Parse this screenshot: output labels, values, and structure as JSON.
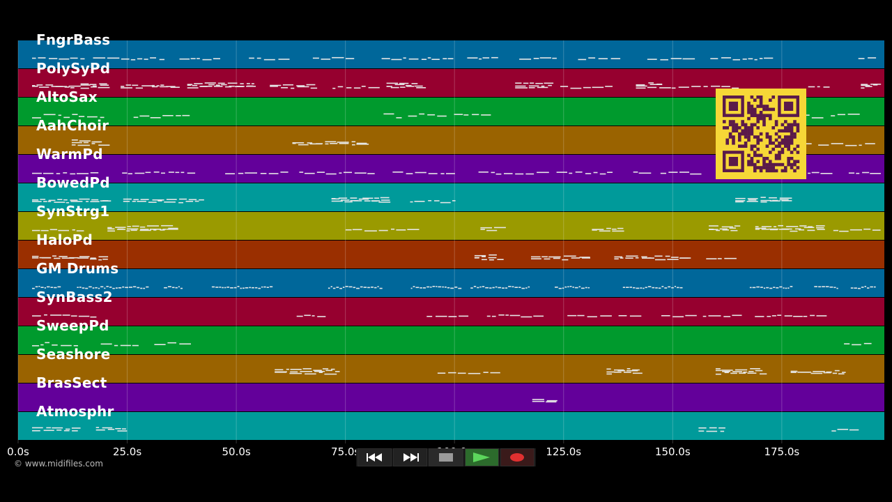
{
  "tracks": [
    {
      "name": "FngrBass",
      "color": "#00679a",
      "density": 0.9,
      "pattern": "bass"
    },
    {
      "name": "PolySyPd",
      "color": "#96002f",
      "density": 0.7,
      "pattern": "pad"
    },
    {
      "name": "AltoSax",
      "color": "#009a2d",
      "density": 0.6,
      "pattern": "lead"
    },
    {
      "name": "AahChoir",
      "color": "#9a6300",
      "density": 0.5,
      "pattern": "pad"
    },
    {
      "name": "WarmPd",
      "color": "#63009a",
      "density": 0.9,
      "pattern": "bass"
    },
    {
      "name": "BowedPd",
      "color": "#009a9a",
      "density": 0.5,
      "pattern": "pad"
    },
    {
      "name": "SynStrg1",
      "color": "#9a9a00",
      "density": 0.7,
      "pattern": "pad"
    },
    {
      "name": "HaloPd",
      "color": "#9a2f00",
      "density": 0.6,
      "pattern": "pad"
    },
    {
      "name": "GM Drums",
      "color": "#00679a",
      "density": 0.8,
      "pattern": "drums"
    },
    {
      "name": "SynBass2",
      "color": "#96002f",
      "density": 0.6,
      "pattern": "bass"
    },
    {
      "name": "SweepPd",
      "color": "#009a2d",
      "density": 0.3,
      "pattern": "lead"
    },
    {
      "name": "Seashore",
      "color": "#9a6300",
      "density": 0.5,
      "pattern": "pad"
    },
    {
      "name": "BrasSect",
      "color": "#63009a",
      "density": 0.1,
      "pattern": "pad"
    },
    {
      "name": "Atmosphr",
      "color": "#009a9a",
      "density": 0.5,
      "pattern": "pad"
    }
  ],
  "timeline": {
    "start": 0,
    "end": 198.5,
    "ticks": [
      {
        "value": 0,
        "label": "0.0s"
      },
      {
        "value": 25,
        "label": "25.0s"
      },
      {
        "value": 50,
        "label": "50.0s"
      },
      {
        "value": 75,
        "label": "75.0s"
      },
      {
        "value": 100,
        "label": "100.0s"
      },
      {
        "value": 125,
        "label": "125.0s"
      },
      {
        "value": 150,
        "label": "150.0s"
      },
      {
        "value": 175,
        "label": "175.0s"
      }
    ]
  },
  "copyright": "© www.midifiles.com",
  "transport": {
    "rewind_icon": "rewind-icon",
    "forward_icon": "fast-forward-icon",
    "stop_icon": "stop-icon",
    "play_icon": "play-icon",
    "record_icon": "record-icon"
  },
  "colors": {
    "note": "#e6e6e6",
    "grid": "#ffffff",
    "qr_background": "#f6d737",
    "qr_modules": "#5a1a4a"
  },
  "qr_code": {
    "icon": "qr-code-icon"
  }
}
